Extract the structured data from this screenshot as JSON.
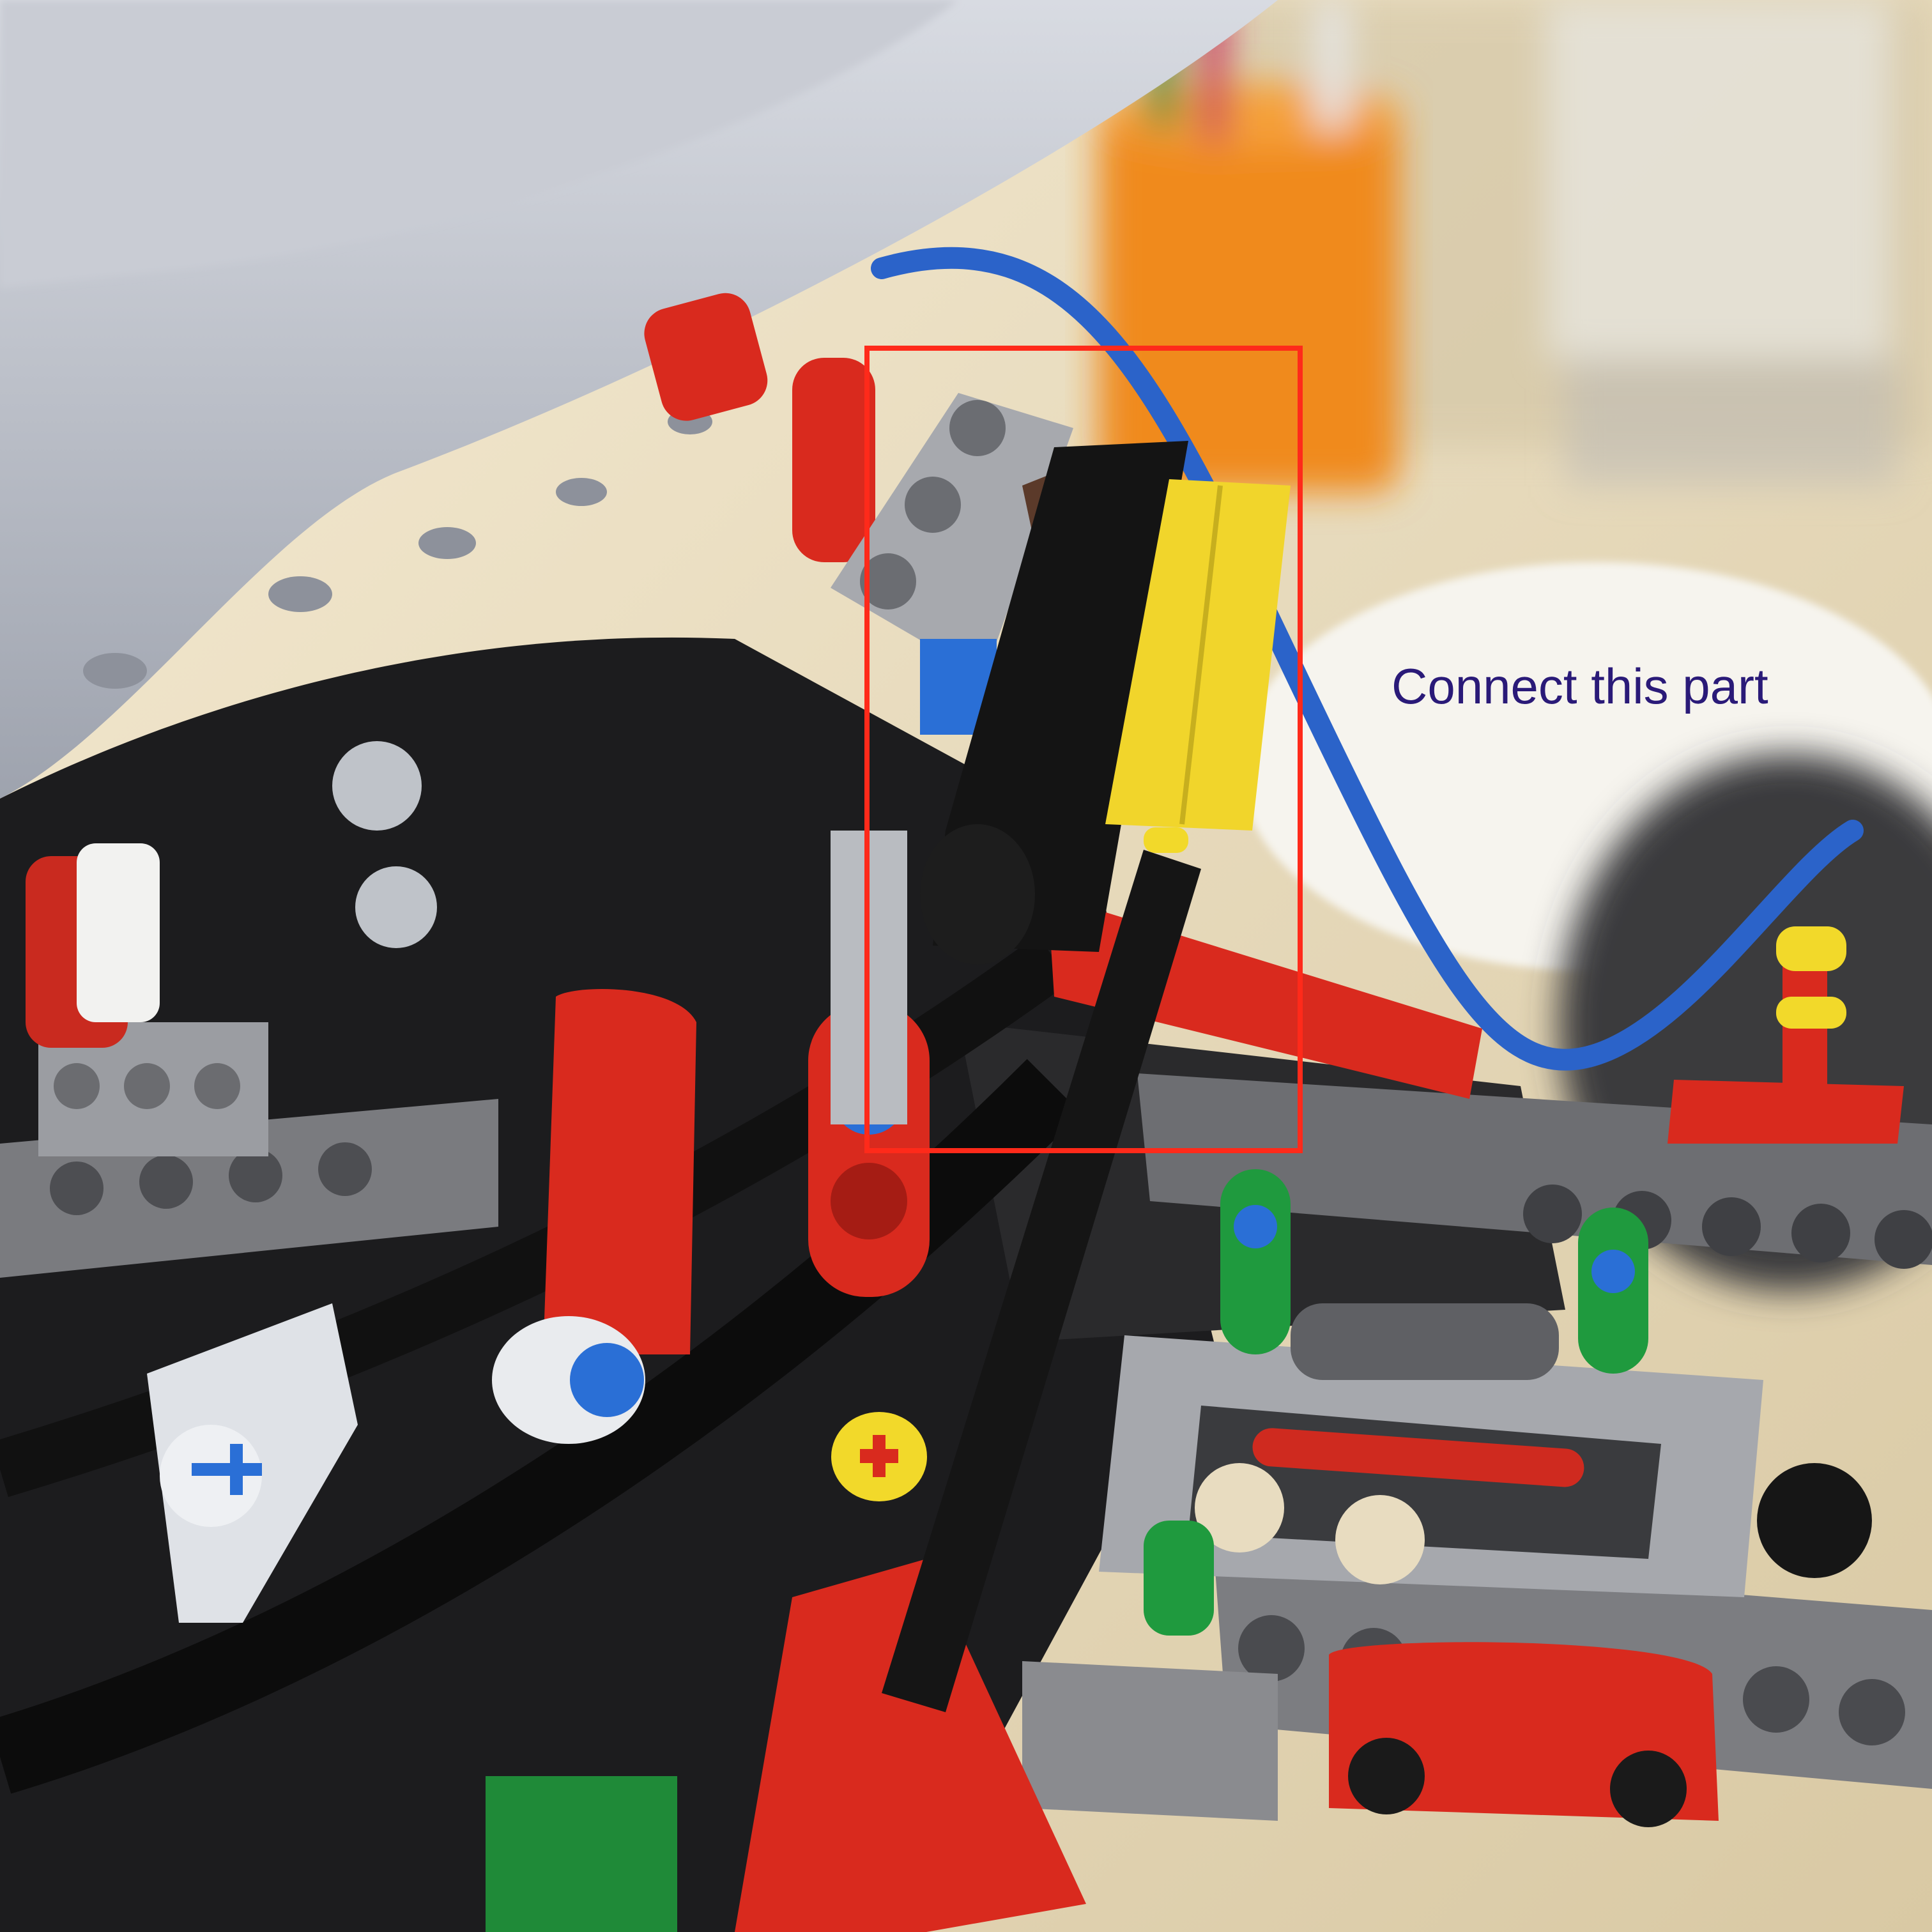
{
  "annotation": {
    "caption": "Connect this part",
    "caption_color": "#2a1a78",
    "box_color": "#ff2a1a"
  },
  "photo": {
    "subject": "technic-build",
    "background_color": "#efe3c6",
    "accent_colors": [
      "#d92a1e",
      "#f2d92a",
      "#2a6fd6",
      "#1f9a3e",
      "#6e6e70",
      "#151515"
    ]
  }
}
